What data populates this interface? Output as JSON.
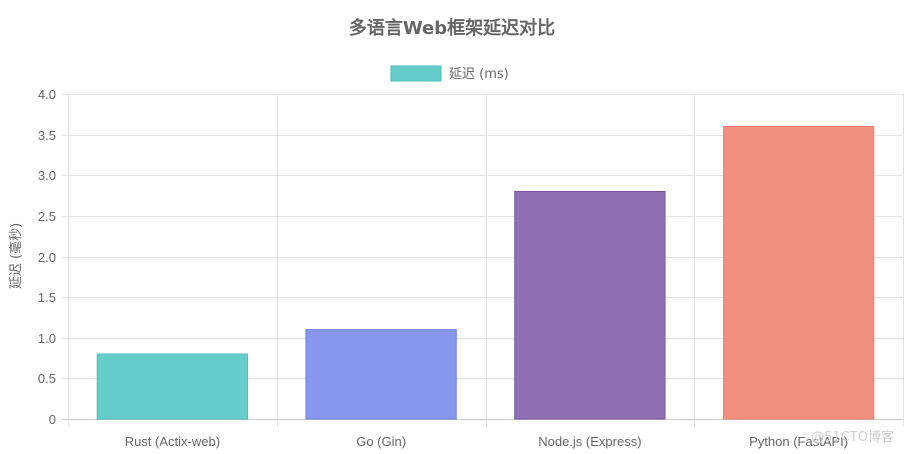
{
  "chart_data": {
    "type": "bar",
    "title": "多语言Web框架延迟对比",
    "ylabel": "延迟 (毫秒)",
    "xlabel": "",
    "categories": [
      "Rust (Actix-web)",
      "Go (Gin)",
      "Node.js (Express)",
      "Python (FastAPI)"
    ],
    "series": [
      {
        "name": "延迟 (ms)",
        "values": [
          0.8,
          1.1,
          2.8,
          3.6
        ],
        "colors": [
          "#66cdca",
          "#8797ee",
          "#9070b4",
          "#f29080"
        ],
        "border_colors": [
          "#4bbfbc",
          "#6a7fe6",
          "#7a559e",
          "#ee7f6d"
        ]
      }
    ],
    "ylim": [
      0,
      4.0
    ],
    "yticks": [
      "0",
      "0.5",
      "1.0",
      "1.5",
      "2.0",
      "2.5",
      "3.0",
      "3.5",
      "4.0"
    ],
    "grid": true,
    "legend_position": "top",
    "legend_color": "#66cdca",
    "legend_border_color": "#4bbfbc",
    "grid_color": "#e5e5e5",
    "text_color": "#666666"
  },
  "watermark": "@51CTO博客"
}
